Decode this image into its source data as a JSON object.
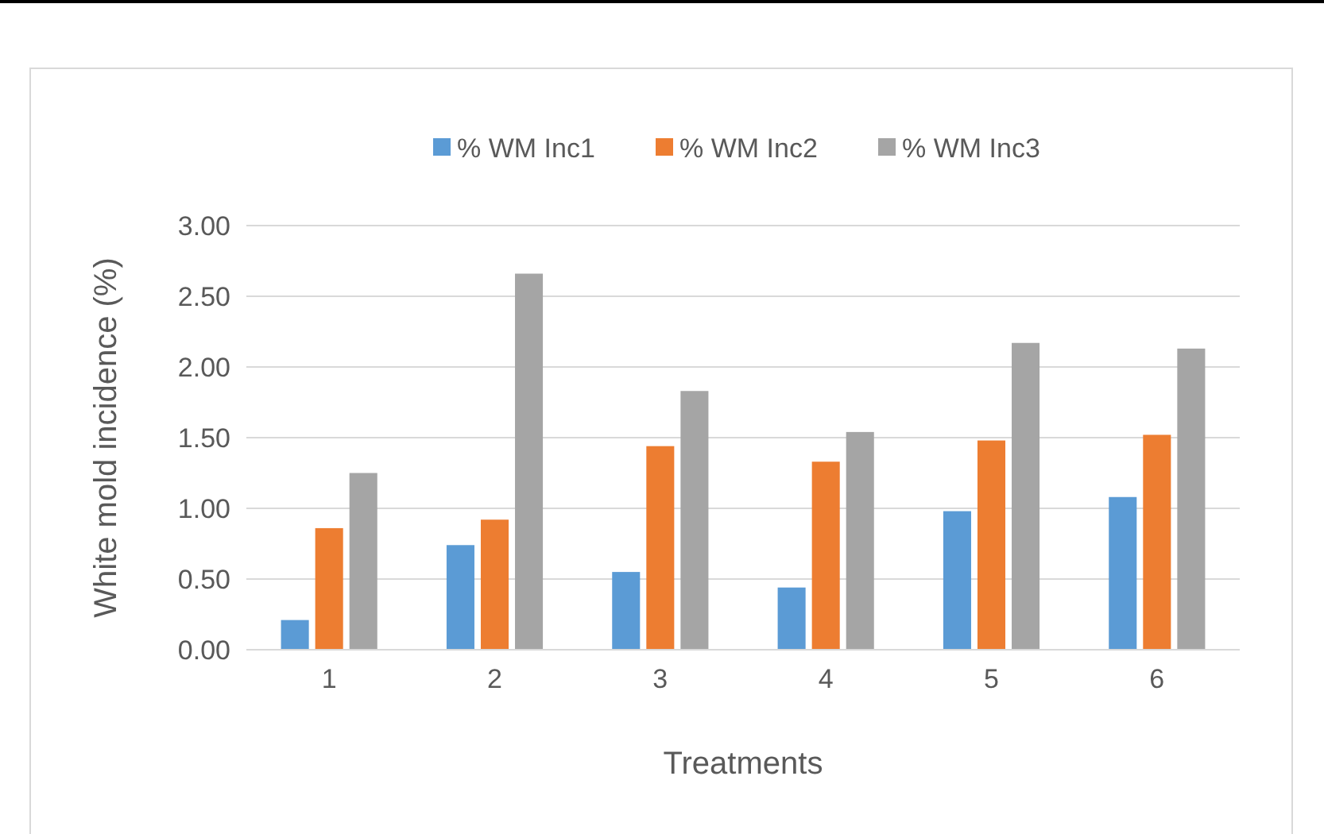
{
  "chart_data": {
    "type": "bar",
    "xlabel": "Treatments",
    "ylabel": "White mold incidence (%)",
    "categories": [
      "1",
      "2",
      "3",
      "4",
      "5",
      "6"
    ],
    "series": [
      {
        "name": "% WM Inc1",
        "color": "#5b9bd5",
        "values": [
          0.21,
          0.74,
          0.55,
          0.44,
          0.98,
          1.08
        ]
      },
      {
        "name": "% WM Inc2",
        "color": "#ed7d31",
        "values": [
          0.86,
          0.92,
          1.44,
          1.33,
          1.48,
          1.52
        ]
      },
      {
        "name": "% WM Inc3",
        "color": "#a5a5a5",
        "values": [
          1.25,
          2.66,
          1.83,
          1.54,
          2.17,
          2.13
        ]
      }
    ],
    "ylim": [
      0,
      3
    ],
    "yticks": [
      {
        "value": 0,
        "label": "0.00"
      },
      {
        "value": 0.5,
        "label": "0.50"
      },
      {
        "value": 1,
        "label": "1.00"
      },
      {
        "value": 1.5,
        "label": "1.50"
      },
      {
        "value": 2,
        "label": "2.00"
      },
      {
        "value": 2.5,
        "label": "2.50"
      },
      {
        "value": 3,
        "label": "3.00"
      }
    ],
    "grid": "y",
    "legend": "top"
  }
}
